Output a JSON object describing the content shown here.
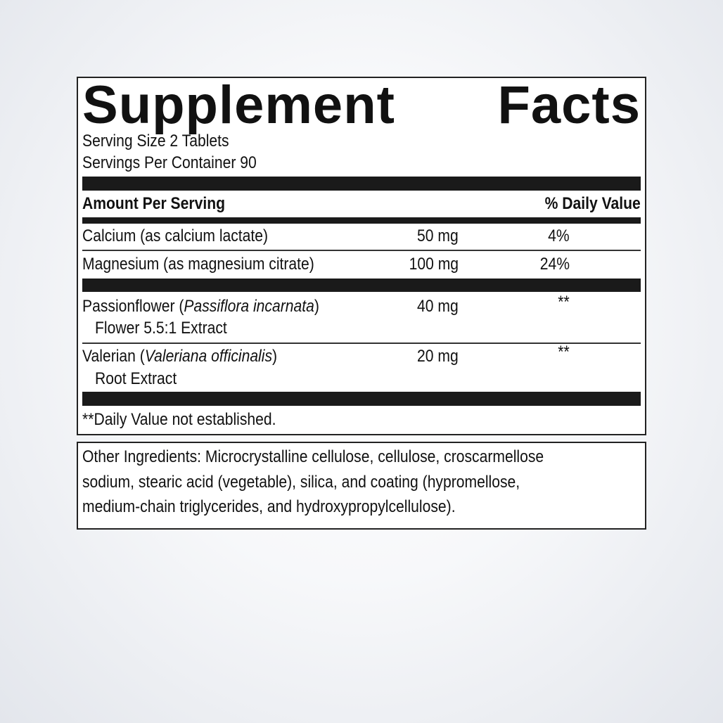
{
  "title_word1": "Supplement",
  "title_word2": "Facts",
  "serving_size": "Serving Size 2 Tablets",
  "servings_per_container": "Servings Per Container 90",
  "header": {
    "amount": "Amount Per Serving",
    "dv": "% Daily Value"
  },
  "rows": [
    {
      "name": "Calcium (as calcium lactate)",
      "amount": "50 mg",
      "dv": "4%"
    },
    {
      "name": "Magnesium (as magnesium citrate)",
      "amount": "100 mg",
      "dv": "24%"
    },
    {
      "name_pre": "Passionflower (",
      "name_italic": "Passiflora incarnata",
      "name_post": ")",
      "sub": "Flower 5.5:1 Extract",
      "amount": "40 mg",
      "dv": "**"
    },
    {
      "name_pre": "Valerian (",
      "name_italic": "Valeriana officinalis",
      "name_post": ")",
      "sub": "Root Extract",
      "amount": "20 mg",
      "dv": "**"
    }
  ],
  "footnote": "**Daily Value not established.",
  "other_ingredients": [
    "Other Ingredients: Microcrystalline cellulose, cellulose, croscarmellose",
    "sodium, stearic acid (vegetable), silica, and coating (hypromellose,",
    "medium-chain triglycerides, and hydroxypropylcellulose)."
  ]
}
